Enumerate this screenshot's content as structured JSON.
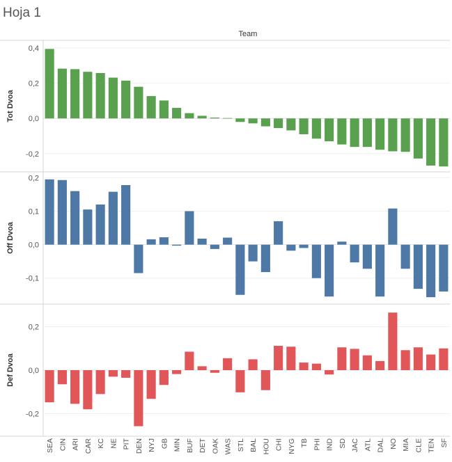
{
  "sheet_title": "Hoja 1",
  "chart_data": {
    "type": "bar",
    "column_header": "Team",
    "categories": [
      "SEA",
      "CIN",
      "ARI",
      "CAR",
      "KC",
      "NE",
      "PIT",
      "DEN",
      "NYJ",
      "GB",
      "MIN",
      "BUF",
      "DET",
      "OAK",
      "WAS",
      "STL",
      "BAL",
      "HOU",
      "CHI",
      "NYG",
      "TB",
      "PHI",
      "IND",
      "SD",
      "JAC",
      "ATL",
      "DAL",
      "NO",
      "MIA",
      "CLE",
      "TEN",
      "SF"
    ],
    "series": [
      {
        "name": "Tot Dvoa",
        "color": "#59a14f",
        "ylim": [
          -0.28,
          0.42
        ],
        "ticks": [
          {
            "v": 0.4,
            "label": "0,4"
          },
          {
            "v": 0.2,
            "label": "0,2"
          },
          {
            "v": 0.0,
            "label": "0,0"
          },
          {
            "v": -0.2,
            "label": "-0,2"
          }
        ],
        "values": [
          0.395,
          0.283,
          0.28,
          0.265,
          0.258,
          0.232,
          0.215,
          0.18,
          0.127,
          0.102,
          0.06,
          0.03,
          0.015,
          0.005,
          0.002,
          -0.02,
          -0.028,
          -0.045,
          -0.055,
          -0.068,
          -0.09,
          -0.115,
          -0.13,
          -0.148,
          -0.162,
          -0.162,
          -0.178,
          -0.187,
          -0.19,
          -0.228,
          -0.268,
          -0.273
        ]
      },
      {
        "name": "Off Dvoa",
        "color": "#4e79a7",
        "ylim": [
          -0.165,
          0.205
        ],
        "ticks": [
          {
            "v": 0.2,
            "label": "0,2"
          },
          {
            "v": 0.1,
            "label": "0,1"
          },
          {
            "v": 0.0,
            "label": "0,0"
          },
          {
            "v": -0.1,
            "label": "-0,1"
          }
        ],
        "values": [
          0.195,
          0.193,
          0.16,
          0.105,
          0.12,
          0.158,
          0.178,
          -0.085,
          0.016,
          0.022,
          -0.003,
          0.1,
          0.018,
          -0.013,
          0.021,
          -0.15,
          -0.05,
          -0.082,
          0.07,
          -0.018,
          -0.01,
          -0.1,
          -0.155,
          0.009,
          -0.053,
          -0.072,
          -0.155,
          0.108,
          -0.072,
          -0.132,
          -0.157,
          -0.14
        ]
      },
      {
        "name": "Def Dvoa",
        "color": "#e15759",
        "ylim": [
          -0.285,
          0.285
        ],
        "ticks": [
          {
            "v": 0.2,
            "label": "0,2"
          },
          {
            "v": 0.0,
            "label": "0,0"
          },
          {
            "v": -0.2,
            "label": "-0,2"
          }
        ],
        "values": [
          -0.148,
          -0.065,
          -0.155,
          -0.18,
          -0.11,
          -0.03,
          -0.035,
          -0.258,
          -0.132,
          -0.068,
          -0.018,
          0.085,
          0.018,
          -0.012,
          0.055,
          -0.102,
          0.05,
          -0.092,
          0.112,
          0.108,
          0.035,
          0.03,
          -0.02,
          0.105,
          0.098,
          0.068,
          0.042,
          0.265,
          0.092,
          0.105,
          0.072,
          0.1
        ]
      }
    ]
  }
}
